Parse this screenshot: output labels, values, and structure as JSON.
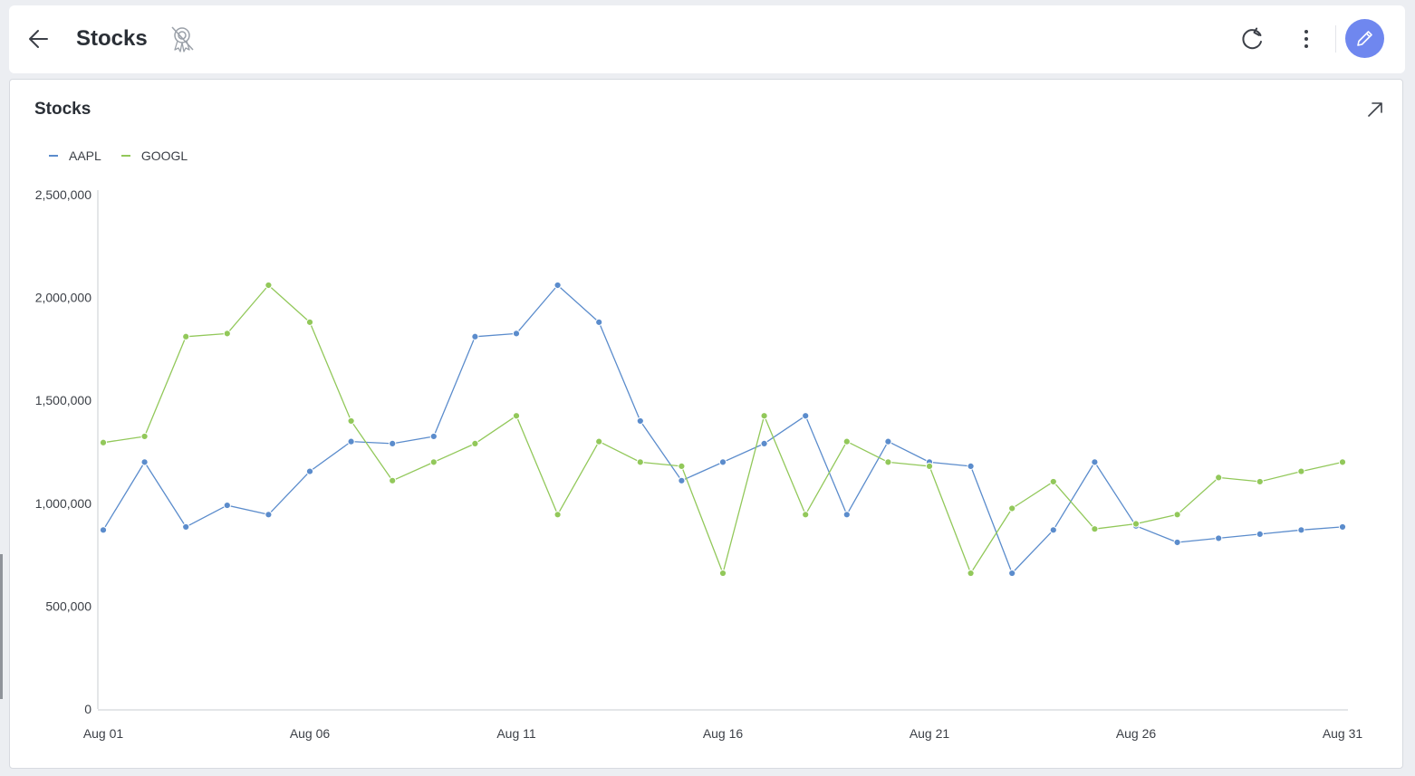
{
  "header": {
    "title": "Stocks",
    "back_icon": "arrow-left-icon",
    "badge_icon": "award-off-icon",
    "refresh_icon": "refresh-icon",
    "more_icon": "more-vertical-icon",
    "edit_icon": "pencil-icon",
    "edit_color": "#6f87ef"
  },
  "card": {
    "title": "Stocks",
    "expand_icon": "expand-arrow-icon"
  },
  "legend": [
    {
      "name": "AAPL",
      "color": "#5b8ccc"
    },
    {
      "name": "GOOGL",
      "color": "#92c85a"
    }
  ],
  "chart_data": {
    "type": "line",
    "title": "Stocks",
    "x": [
      "Aug 01",
      "Aug 02",
      "Aug 03",
      "Aug 04",
      "Aug 05",
      "Aug 06",
      "Aug 07",
      "Aug 08",
      "Aug 09",
      "Aug 10",
      "Aug 11",
      "Aug 12",
      "Aug 13",
      "Aug 14",
      "Aug 15",
      "Aug 16",
      "Aug 17",
      "Aug 18",
      "Aug 19",
      "Aug 20",
      "Aug 21",
      "Aug 22",
      "Aug 23",
      "Aug 24",
      "Aug 25",
      "Aug 26",
      "Aug 27",
      "Aug 28",
      "Aug 29",
      "Aug 30",
      "Aug 31"
    ],
    "x_tick_labels": [
      "Aug 01",
      "Aug 06",
      "Aug 11",
      "Aug 16",
      "Aug 21",
      "Aug 26",
      "Aug 31"
    ],
    "y_tick_labels": [
      "2,500,000",
      "2,000,000",
      "1,500,000",
      "1,000,000",
      "500,000",
      "0"
    ],
    "y_ticks": [
      2500000,
      2000000,
      1500000,
      1000000,
      500000,
      0
    ],
    "ylim": [
      0,
      2500000
    ],
    "grid": false,
    "legend_position": "top-left",
    "series": [
      {
        "name": "AAPL",
        "color": "#5b8ccc",
        "values": [
          870000,
          1200000,
          885000,
          990000,
          945000,
          1155000,
          1300000,
          1290000,
          1325000,
          1810000,
          1825000,
          2060000,
          1880000,
          1400000,
          1110000,
          1200000,
          1290000,
          1425000,
          945000,
          1300000,
          1200000,
          1180000,
          660000,
          870000,
          1200000,
          890000,
          810000,
          830000,
          850000,
          870000,
          885000
        ]
      },
      {
        "name": "GOOGL",
        "color": "#92c85a",
        "values": [
          1295000,
          1325000,
          1810000,
          1825000,
          2060000,
          1880000,
          1400000,
          1110000,
          1200000,
          1290000,
          1425000,
          945000,
          1300000,
          1200000,
          1180000,
          660000,
          1425000,
          945000,
          1300000,
          1200000,
          1180000,
          660000,
          975000,
          1105000,
          875000,
          900000,
          945000,
          1125000,
          1105000,
          1155000,
          1200000
        ]
      }
    ]
  }
}
